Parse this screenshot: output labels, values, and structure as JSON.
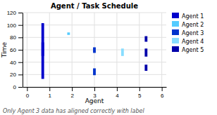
{
  "chart_data": {
    "type": "range_bar",
    "title": "Agent / Task Schedule",
    "x_label": "Agent",
    "y_label": "Time",
    "annotation": "Only Agent 3 data has aligned correctly with label",
    "xlim": [
      -0.2,
      6.2
    ],
    "ylim": [
      0,
      120
    ],
    "xticks": [
      0,
      1,
      2,
      3,
      4,
      5,
      6
    ],
    "yticks": [
      0,
      20,
      40,
      60,
      80,
      100,
      120
    ],
    "grid": true,
    "legend": "right",
    "series": [
      {
        "name": "Agent 1",
        "color": "#0000cc",
        "x": [
          0.7,
          0.7
        ],
        "low": [
          13,
          50
        ],
        "high": [
          103,
          72
        ]
      },
      {
        "name": "Agent 2",
        "color": "#55ccff",
        "x": [
          1.85
        ],
        "low": [
          84
        ],
        "high": [
          88
        ]
      },
      {
        "name": "Agent 3",
        "color": "#0033cc",
        "x": [
          3.0,
          3.0
        ],
        "low": [
          19,
          55
        ],
        "high": [
          30,
          64
        ]
      },
      {
        "name": "Agent 4",
        "color": "#88ddff",
        "x": [
          4.25
        ],
        "low": [
          50
        ],
        "high": [
          62
        ]
      },
      {
        "name": "Agent 5",
        "color": "#0000aa",
        "x": [
          5.3,
          5.3,
          5.3
        ],
        "low": [
          49,
          73,
          26
        ],
        "high": [
          62,
          82,
          36
        ]
      }
    ]
  }
}
